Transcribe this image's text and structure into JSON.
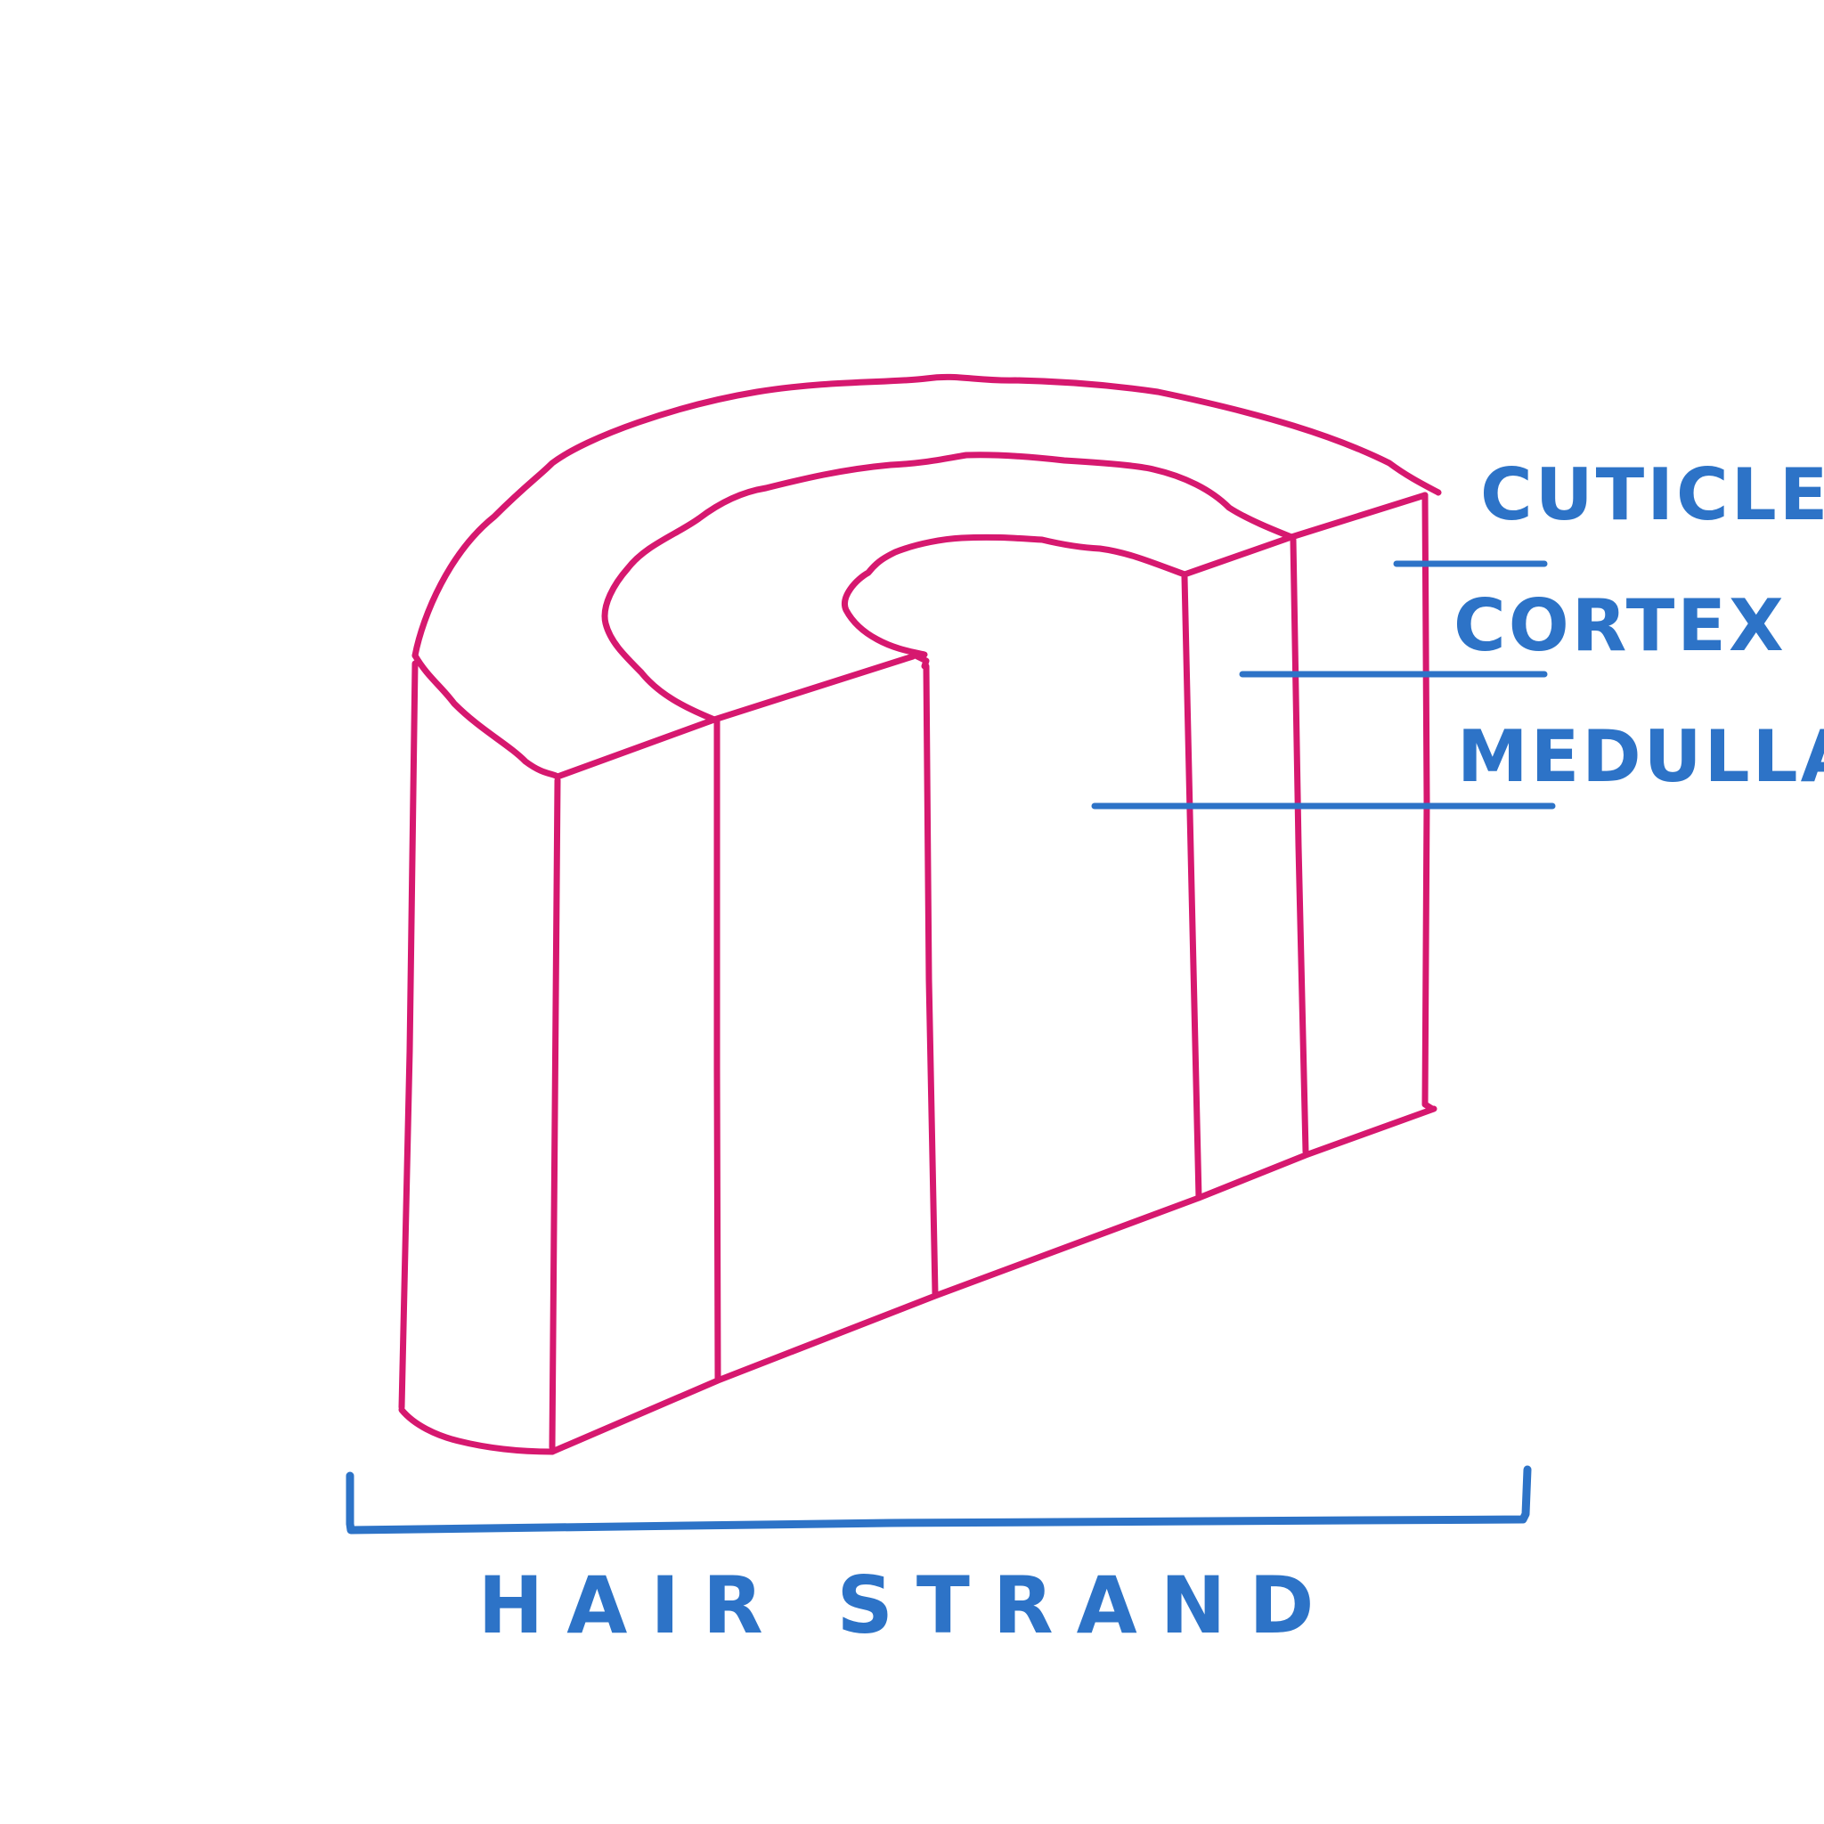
{
  "colors": {
    "outline": "#d6186f",
    "annotation": "#2d73c7",
    "background": "#ffffff"
  },
  "labels": {
    "cuticle": "CUTICLE",
    "cortex": "CORTEX",
    "medulla": "MEDULLA",
    "strand": "HAIR STRAND"
  }
}
